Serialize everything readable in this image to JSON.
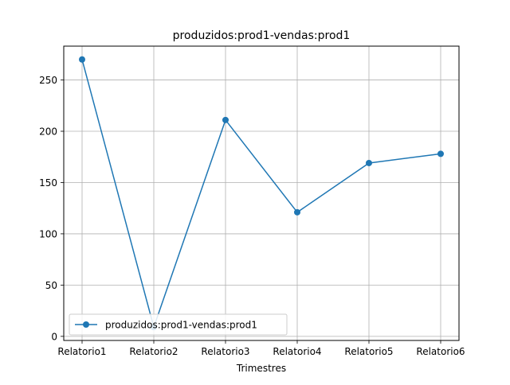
{
  "chart_data": {
    "type": "line",
    "title": "produzidos:prod1-vendas:prod1",
    "xlabel": "Trimestres",
    "ylabel": "",
    "categories": [
      "Relatorio1",
      "Relatorio2",
      "Relatorio3",
      "Relatorio4",
      "Relatorio5",
      "Relatorio6"
    ],
    "series": [
      {
        "name": "produzidos:prod1-vendas:prod1",
        "values": [
          270,
          9,
          211,
          121,
          169,
          178
        ],
        "color": "#1f77b4",
        "marker": "circle"
      }
    ],
    "yticks": [
      0,
      50,
      100,
      150,
      200,
      250
    ],
    "ylim": [
      -4,
      283
    ],
    "grid": true,
    "legend_position": "lower-left"
  }
}
